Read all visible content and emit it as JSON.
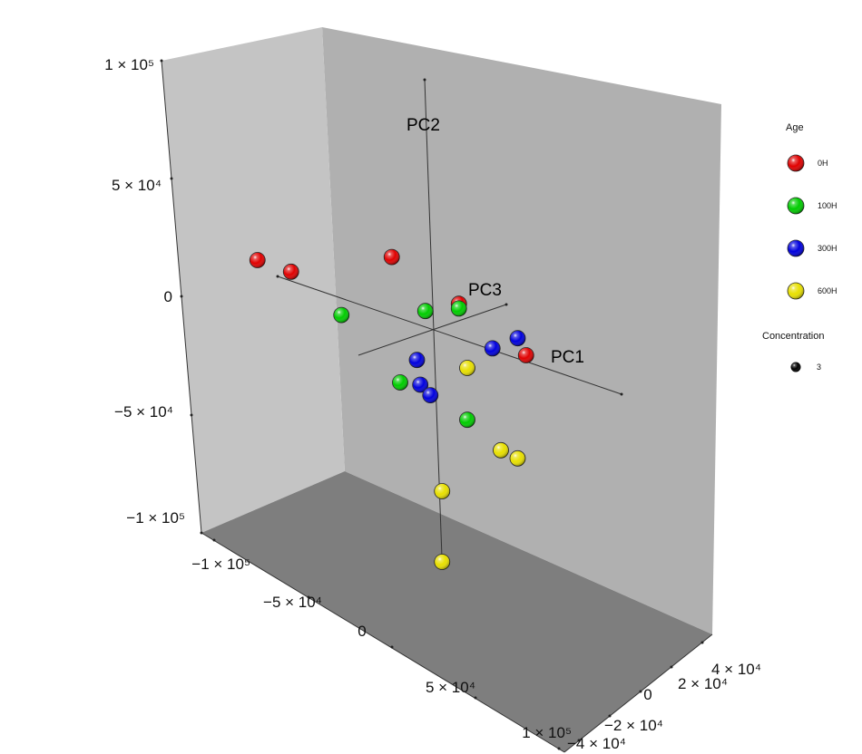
{
  "chart_data": {
    "type": "scatter",
    "projection": "3d",
    "axes": {
      "pc1": {
        "label": "PC1"
      },
      "pc2": {
        "label": "PC2"
      },
      "pc3": {
        "label": "PC3"
      }
    },
    "ticks": {
      "vertical": [
        "1 × 10⁵",
        "5 × 10⁴",
        "0",
        "−5 × 10⁴",
        "−1 × 10⁵"
      ],
      "floor_left": [
        "−1 × 10⁵",
        "−5 × 10⁴",
        "0",
        "5 × 10⁴",
        "1 × 10⁵"
      ],
      "floor_right": [
        "4 × 10⁴",
        "2 × 10⁴",
        "0",
        "−2 × 10⁴",
        "−4 × 10⁴"
      ]
    },
    "legend": {
      "color_title": "Age",
      "size_title": "Concentration",
      "size_value": "3"
    },
    "series": [
      {
        "name": "0H",
        "color": "#e00000",
        "points": [
          [
            -105000,
            3000
          ],
          [
            -85000,
            3000
          ],
          [
            -25000,
            24000
          ],
          [
            15000,
            14000
          ],
          [
            55000,
            2000
          ]
        ]
      },
      {
        "name": "100H",
        "color": "#00cc00",
        "points": [
          [
            -55000,
            -8000
          ],
          [
            -5000,
            6000
          ],
          [
            15000,
            12000
          ],
          [
            -20000,
            -28000
          ],
          [
            20000,
            -34000
          ]
        ]
      },
      {
        "name": "300H",
        "color": "#0000dd",
        "points": [
          [
            -10000,
            -16000
          ],
          [
            35000,
            0
          ],
          [
            50000,
            8000
          ],
          [
            -8000,
            -26000
          ],
          [
            -2000,
            -29000
          ]
        ]
      },
      {
        "name": "600H",
        "color": "#e8e000",
        "points": [
          [
            20000,
            -12000
          ],
          [
            40000,
            -42000
          ],
          [
            50000,
            -43000
          ],
          [
            5000,
            -68000
          ],
          [
            5000,
            -98000
          ]
        ]
      }
    ]
  }
}
